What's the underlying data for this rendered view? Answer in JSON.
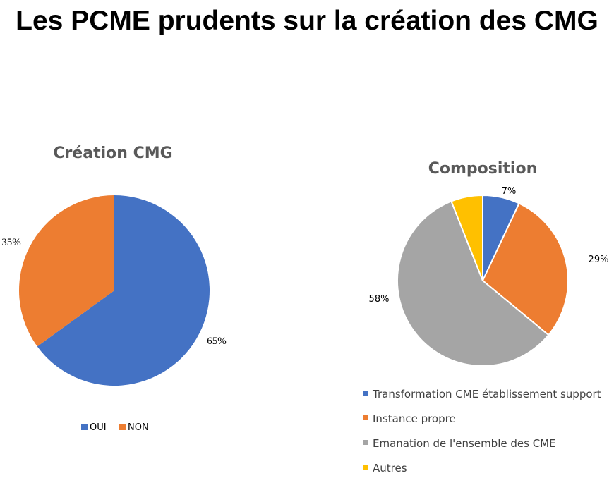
{
  "title": "Les PCME prudents sur la création des CMG",
  "chart_data": [
    {
      "type": "pie",
      "title": "Création CMG",
      "legend_position": "bottom",
      "slices": [
        {
          "label": "OUI",
          "value": 65,
          "display": "65%",
          "color": "#4472C4"
        },
        {
          "label": "NON",
          "value": 35,
          "display": "35%",
          "color": "#ED7D31"
        }
      ]
    },
    {
      "type": "pie",
      "title": "Composition",
      "legend_position": "bottom",
      "slices": [
        {
          "label": "Transformation CME établissement support",
          "value": 7,
          "display": "7%",
          "color": "#4472C4"
        },
        {
          "label": "Instance propre",
          "value": 29,
          "display": "29%",
          "color": "#ED7D31"
        },
        {
          "label": "Emanation de l'ensemble des CME",
          "value": 58,
          "display": "58%",
          "color": "#A5A5A5"
        },
        {
          "label": "Autres",
          "value": 6,
          "display": "",
          "color": "#FFC000"
        }
      ]
    }
  ]
}
